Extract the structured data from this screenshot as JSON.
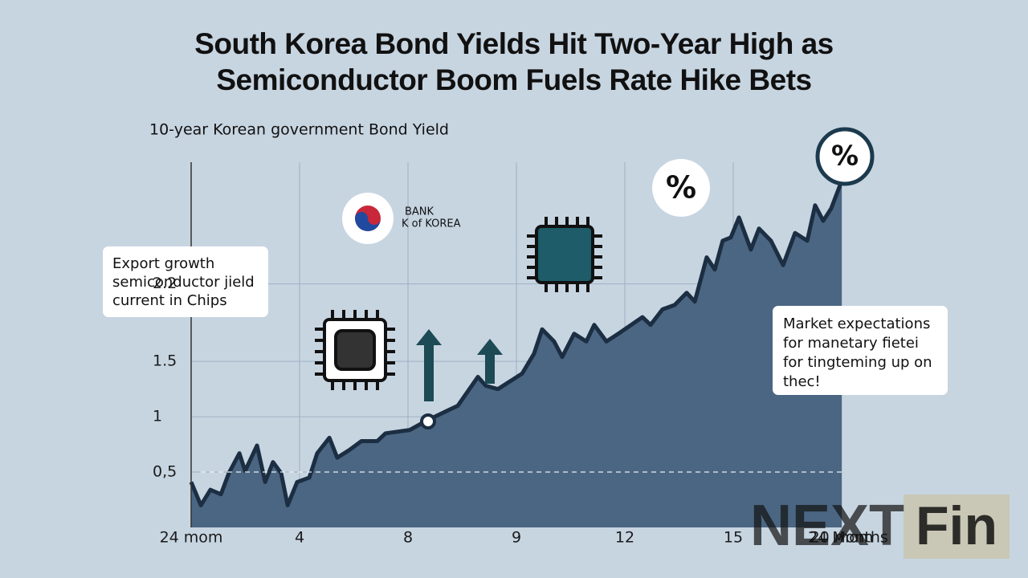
{
  "chart_data": {
    "type": "area",
    "title": [
      "South Korea Bond Yields Hit Two-Year High as",
      "Semiconductor Boom Fuels Rate Hike Bets"
    ],
    "subtitle": "10-year Korean government Bond Yield",
    "x": [
      0,
      0.36,
      0.71,
      1.1,
      1.39,
      1.78,
      1.99,
      2.43,
      2.73,
      3.02,
      3.32,
      3.56,
      3.91,
      4.36,
      4.65,
      5.1,
      5.39,
      5.84,
      6.28,
      6.87,
      7.17,
      8.06,
      8.65,
      9.24,
      9.84,
      10.58,
      10.87,
      11.32,
      12.21,
      12.65,
      12.95,
      13.39,
      13.69,
      14.13,
      14.58,
      14.87,
      15.32,
      15.76,
      16.65,
      16.95,
      17.39,
      17.84,
      18.28,
      18.58,
      19.02,
      19.32,
      19.61,
      19.91,
      20.21,
      20.65,
      20.95,
      21.39,
      21.84,
      22.28,
      22.73,
      23.02,
      23.32,
      23.61,
      24
    ],
    "values": [
      0.41,
      0.2,
      0.34,
      0.3,
      0.49,
      0.67,
      0.51,
      0.74,
      0.41,
      0.59,
      0.49,
      0.2,
      0.41,
      0.45,
      0.67,
      0.81,
      0.63,
      0.7,
      0.78,
      0.78,
      0.85,
      0.88,
      0.96,
      1.03,
      1.1,
      1.36,
      1.28,
      1.25,
      1.39,
      1.57,
      1.79,
      1.68,
      1.54,
      1.75,
      1.68,
      1.83,
      1.68,
      1.75,
      1.9,
      1.83,
      1.97,
      2.01,
      2.12,
      2.04,
      2.44,
      2.33,
      2.59,
      2.62,
      2.8,
      2.51,
      2.7,
      2.59,
      2.37,
      2.66,
      2.59,
      2.91,
      2.77,
      2.88,
      3.13
    ],
    "color": "#4b6682",
    "line_color": "#1c2e42",
    "xlim": [
      0,
      24
    ],
    "xticks": [
      {
        "value": 0,
        "label": "24 mom"
      },
      4,
      8,
      {
        "value": 12,
        "label": "9"
      },
      {
        "value": 16,
        "label": "12"
      },
      {
        "value": 20,
        "label": "15"
      },
      {
        "value": 24,
        "label": "20 mom"
      }
    ],
    "xticks_note": "24 Months",
    "ylim": [
      0,
      3.3
    ],
    "yticks": [
      {
        "value": 0.5,
        "label": "0,5"
      },
      1.0,
      1.5,
      2.2
    ],
    "grid": true,
    "annotations": {
      "bank": [
        "BANK",
        "K of KOREA"
      ],
      "left_note": [
        "Export growth",
        "semiconductor jield",
        "current in Chips"
      ],
      "right_note": [
        "Market expectations",
        "for manetary fietei",
        "for tingteming up on",
        "thec!"
      ],
      "percent_icons": [
        "%",
        "%"
      ]
    },
    "watermark": [
      "NEXT",
      "Fin"
    ]
  }
}
